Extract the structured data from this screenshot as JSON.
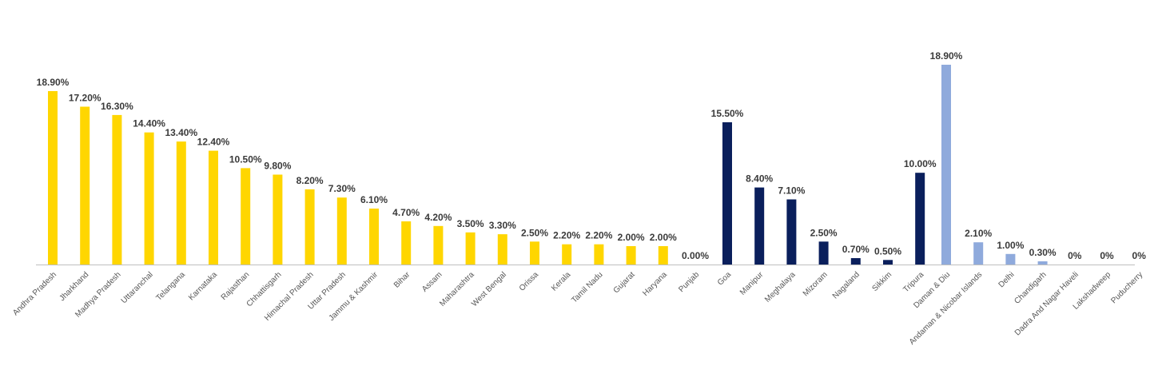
{
  "chart_data": {
    "type": "bar",
    "groups": [
      {
        "color": "#FFD600",
        "categories": [
          "Andhra Pradesh",
          "Jharkhand",
          "Madhya Pradesh",
          "Uttaranchal",
          "Telangana",
          "Karnataka",
          "Rajasthan",
          "Chhattisgarh",
          "Himachal Pradesh",
          "Uttar Pradesh",
          "Jammu & Kashmir",
          "Bihar",
          "Assam",
          "Maharashtra",
          "West Bengal",
          "Orissa",
          "Kerala",
          "Tamil Nadu",
          "Gujarat",
          "Haryana",
          "Punjab"
        ],
        "values": [
          18.9,
          17.2,
          16.3,
          14.4,
          13.4,
          12.4,
          10.5,
          9.8,
          8.2,
          7.3,
          6.1,
          4.7,
          4.2,
          3.5,
          3.3,
          2.5,
          2.2,
          2.2,
          2.0,
          2.0,
          0.0
        ],
        "labels": [
          "18.90%",
          "17.20%",
          "16.30%",
          "14.40%",
          "13.40%",
          "12.40%",
          "10.50%",
          "9.80%",
          "8.20%",
          "7.30%",
          "6.10%",
          "4.70%",
          "4.20%",
          "3.50%",
          "3.30%",
          "2.50%",
          "2.20%",
          "2.20%",
          "2.00%",
          "2.00%",
          "0.00%"
        ]
      },
      {
        "color": "#0A1F5C",
        "categories": [
          "Goa",
          "Manipur",
          "Meghalaya",
          "Mizoram",
          "Nagaland",
          "Sikkim",
          "Tripura"
        ],
        "values": [
          15.5,
          8.4,
          7.1,
          2.5,
          0.7,
          0.5,
          10.0
        ],
        "labels": [
          "15.50%",
          "8.40%",
          "7.10%",
          "2.50%",
          "0.70%",
          "0.50%",
          "10.00%"
        ]
      },
      {
        "color": "#8FAADC",
        "categories": [
          "Daman & Diu",
          "Andaman & Nicobar Islands",
          "Delhi",
          "Chandigarh",
          "Dadra And Nagar Haveli",
          "Lakshadweep",
          "Puducherry"
        ],
        "values": [
          18.9,
          2.1,
          1.0,
          0.3,
          0,
          0,
          0
        ],
        "labels": [
          "18.90%",
          "2.10%",
          "1.00%",
          "0.30%",
          "0%",
          "0%",
          "0%"
        ]
      }
    ],
    "grid": false,
    "legend": "none"
  }
}
